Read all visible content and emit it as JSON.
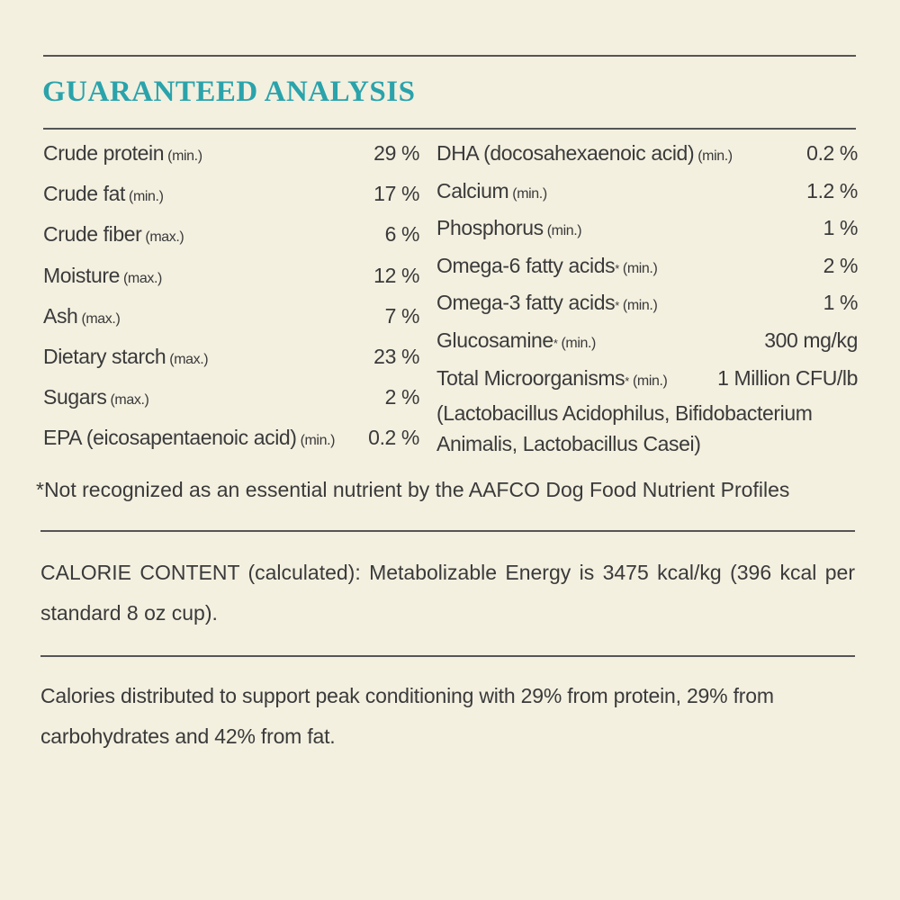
{
  "title": "GUARANTEED ANALYSIS",
  "left_column": [
    {
      "name": "Crude protein",
      "qualifier": "(min.)",
      "value": "29 %"
    },
    {
      "name": "Crude fat",
      "qualifier": "(min.)",
      "value": "17 %"
    },
    {
      "name": "Crude fiber",
      "qualifier": "(max.)",
      "value": "6 %"
    },
    {
      "name": "Moisture",
      "qualifier": "(max.)",
      "value": "12 %"
    },
    {
      "name": "Ash",
      "qualifier": "(max.)",
      "value": "7 %"
    },
    {
      "name": "Dietary starch",
      "qualifier": "(max.)",
      "value": "23 %"
    },
    {
      "name": "Sugars",
      "qualifier": "(max.)",
      "value": "2 %"
    },
    {
      "name": "EPA (eicosapentaenoic acid)",
      "qualifier": "(min.)",
      "value": "0.2 %"
    }
  ],
  "right_column": [
    {
      "name": "DHA (docosahexaenoic acid)",
      "qualifier": "(min.)",
      "value": "0.2 %"
    },
    {
      "name": "Calcium",
      "qualifier": "(min.)",
      "value": "1.2 %"
    },
    {
      "name": "Phosphorus",
      "qualifier": "(min.)",
      "value": "1 %"
    },
    {
      "name": "Omega-6 fatty acids",
      "marker": "*",
      "qualifier": "(min.)",
      "value": "2 %"
    },
    {
      "name": "Omega-3 fatty acids",
      "marker": "*",
      "qualifier": "(min.)",
      "value": "1 %"
    },
    {
      "name": "Glucosamine",
      "marker": "*",
      "qualifier": "(min.)",
      "value": "300 mg/kg"
    },
    {
      "name": "Total Microorganisms",
      "marker": "*",
      "qualifier": "(min.)",
      "value": "1 Million CFU/lb",
      "detail": "(Lactobacillus Acidophilus, Bifidobacterium Animalis, Lactobacillus Casei)"
    }
  ],
  "footnote": "*Not recognized as an essential nutrient by the AAFCO Dog Food Nutrient Profiles",
  "calorie_content": "CALORIE CONTENT (calculated): Metabolizable Energy is 3475 kcal/kg (396 kcal per standard 8 oz cup).",
  "calorie_distribution": "Calories distributed to support peak conditioning with 29% from protein, 29% from carbohydrates and 42% from fat."
}
